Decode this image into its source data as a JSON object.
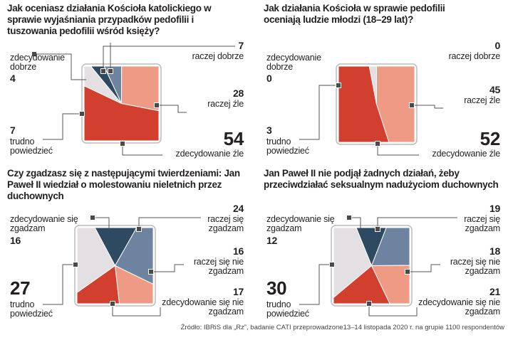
{
  "colors": {
    "zdec_pos": "#2e4a63",
    "raczej_pos": "#6e83a0",
    "raczej_neg": "#ee9a84",
    "zdec_neg": "#d23f2f",
    "trudno": "#e3dfe2"
  },
  "chart_data": [
    {
      "type": "pie",
      "title": "Jak oceniasz działania Kościoła katolickiego w sprawie wyjaśniania przypadków pedofilii i tuszowania pedofilii wśród księży?",
      "categories": [
        "raczej dobrze",
        "raczej źle",
        "zdecydowanie źle",
        "trudno powiedzieć",
        "zdecydowanie dobrze"
      ],
      "values": [
        7,
        28,
        54,
        7,
        4
      ]
    },
    {
      "type": "pie",
      "title": "Jak działania Kościoła w sprawie pedofilii oceniają ludzie młodzi (18–29 lat)?",
      "categories": [
        "raczej dobrze",
        "raczej źle",
        "zdecydowanie źle",
        "trudno powiedzieć",
        "zdecydowanie dobrze"
      ],
      "values": [
        0,
        45,
        52,
        3,
        0
      ]
    },
    {
      "type": "pie",
      "title": "Czy zgadzasz się z następującymi twierdzeniami: Jan Paweł II wiedział o molestowaniu nieletnich przez duchownych",
      "categories": [
        "zdecydowanie się zgadzam",
        "raczej się zgadzam",
        "raczej się nie zgadzam",
        "zdecydowanie się nie zgadzam",
        "trudno powiedzieć"
      ],
      "values": [
        16,
        24,
        16,
        17,
        27
      ]
    },
    {
      "type": "pie",
      "title": "Jan Paweł II nie podjął żadnych działań, żeby przeciwdziałać seksualnym nadużyciom duchownych",
      "categories": [
        "zdecydowanie się zgadzam",
        "raczej się zgadzam",
        "raczej się nie zgadzam",
        "zdecydowanie się nie zgadzam",
        "trudno powiedzieć"
      ],
      "values": [
        12,
        19,
        18,
        21,
        30
      ]
    }
  ],
  "source": "Źródło: IBRiS dla „Rz”, badanie CATI przeprowadzone13–14 listopada 2020 r. na grupie 1100 respondentów"
}
